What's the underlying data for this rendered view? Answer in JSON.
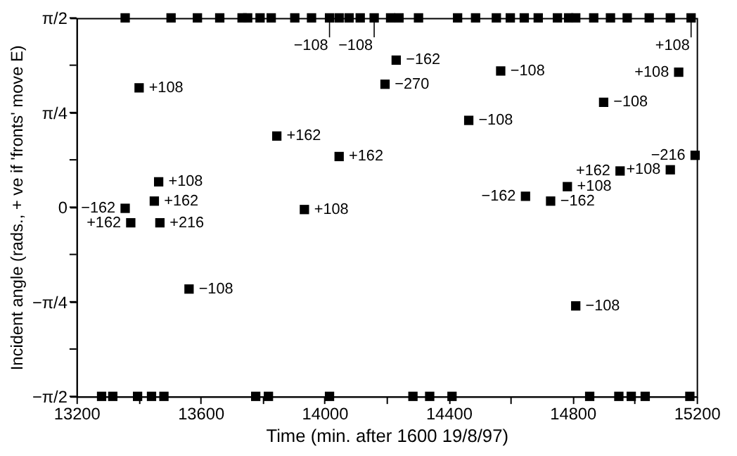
{
  "chart_data": {
    "type": "scatter",
    "xlabel": "Time (min. after 1600 19/8/97)",
    "ylabel": "Incident angle (rads., + ve if 'fronts' move E)",
    "xlim": [
      13200,
      15200
    ],
    "xticks": [
      13200,
      {
        "value": 13400,
        "label": null
      },
      13600,
      {
        "value": 13800,
        "label": null
      },
      14000,
      {
        "value": 14200,
        "label": null
      },
      14400,
      {
        "value": 14600,
        "label": null
      },
      14800,
      {
        "value": 15000,
        "label": null
      },
      15200
    ],
    "ylim": [
      -1.5708,
      1.5708
    ],
    "yticks": [
      {
        "value": -1.5708,
        "label": "−π/2"
      },
      {
        "value": -1.1781,
        "label": null
      },
      {
        "value": -0.7854,
        "label": "−π/4"
      },
      {
        "value": -0.3927,
        "label": null
      },
      0,
      {
        "value": 0.3927,
        "label": null
      },
      {
        "value": 0.7854,
        "label": "π/4"
      },
      {
        "value": 1.1781,
        "label": null
      },
      {
        "value": 1.5708,
        "label": "π/2"
      }
    ],
    "marker": "square",
    "series": [
      {
        "color": "#000000",
        "x": [
          13402,
          13846,
          14047,
          13465,
          13451,
          13357,
          13375,
          13469,
          13935,
          13563,
          14231,
          14195,
          14568,
          14465,
          14900,
          15142,
          15195,
          14953,
          15115,
          14783,
          14648,
          14729,
          14810
        ],
        "values": [
          0.99,
          0.59,
          0.42,
          0.21,
          0.05,
          -0.01,
          -0.13,
          -0.13,
          -0.02,
          -0.68,
          1.22,
          1.02,
          1.13,
          0.72,
          0.87,
          1.12,
          0.43,
          0.3,
          0.31,
          0.17,
          0.09,
          0.05,
          -0.82
        ]
      },
      {
        "color": "#000000",
        "x": [
          13357,
          13505,
          13590,
          13662,
          13734,
          13752,
          13792,
          13828,
          13904,
          13958,
          14016,
          14047,
          14079,
          14115,
          14160,
          14213,
          14240,
          14303,
          14429,
          14487,
          14554,
          14599,
          14644,
          14689,
          14751,
          14787,
          14810,
          14868,
          14922,
          14976,
          15047,
          15115,
          15182
        ],
        "values": [
          1.5708,
          1.5708,
          1.5708,
          1.5708,
          1.5708,
          1.5708,
          1.5708,
          1.5708,
          1.5708,
          1.5708,
          1.5708,
          1.5708,
          1.5708,
          1.5708,
          1.5708,
          1.5708,
          1.5708,
          1.5708,
          1.5708,
          1.5708,
          1.5708,
          1.5708,
          1.5708,
          1.5708,
          1.5708,
          1.5708,
          1.5708,
          1.5708,
          1.5708,
          1.5708,
          1.5708,
          1.5708,
          1.5708
        ]
      },
      {
        "color": "#000000",
        "x": [
          13281,
          13317,
          13397,
          13442,
          13482,
          13778,
          13819,
          14016,
          14285,
          14339,
          14411,
          14855,
          14949,
          14989,
          15034,
          15178
        ],
        "values": [
          -1.5708,
          -1.5708,
          -1.5708,
          -1.5708,
          -1.5708,
          -1.5708,
          -1.5708,
          -1.5708,
          -1.5708,
          -1.5708,
          -1.5708,
          -1.5708,
          -1.5708,
          -1.5708,
          -1.5708,
          -1.5708
        ]
      }
    ],
    "annotations": [
      {
        "text": "+108",
        "x": 13402,
        "y": 0.99
      },
      {
        "text": "+162",
        "x": 13846,
        "y": 0.59
      },
      {
        "text": "+162",
        "x": 14047,
        "y": 0.42
      },
      {
        "text": "+108",
        "x": 13465,
        "y": 0.21
      },
      {
        "text": "+162",
        "x": 13451,
        "y": 0.05
      },
      {
        "text": "−162",
        "x": 13357,
        "y": -0.01
      },
      {
        "text": "+162",
        "x": 13375,
        "y": -0.13
      },
      {
        "text": "+216",
        "x": 13469,
        "y": -0.13
      },
      {
        "text": "+108",
        "x": 13935,
        "y": -0.02
      },
      {
        "text": "−108",
        "x": 13563,
        "y": -0.68
      },
      {
        "text": "−162",
        "x": 14231,
        "y": 1.22
      },
      {
        "text": "−270",
        "x": 14195,
        "y": 1.02
      },
      {
        "text": "−108",
        "x": 14568,
        "y": 1.13
      },
      {
        "text": "−108",
        "x": 14465,
        "y": 0.72
      },
      {
        "text": "−108",
        "x": 14900,
        "y": 0.87
      },
      {
        "text": "+108",
        "x": 15142,
        "y": 1.12
      },
      {
        "text": "−216",
        "x": 15195,
        "y": 0.43
      },
      {
        "text": "+162",
        "x": 14953,
        "y": 0.3
      },
      {
        "text": "+108",
        "x": 15115,
        "y": 0.31
      },
      {
        "text": "+108",
        "x": 14783,
        "y": 0.17
      },
      {
        "text": "−162",
        "x": 14648,
        "y": 0.09
      },
      {
        "text": "−162",
        "x": 14729,
        "y": 0.05
      },
      {
        "text": "−108",
        "x": 14810,
        "y": -0.82
      },
      {
        "text": "−108",
        "x": 14016,
        "y": 1.5708
      },
      {
        "text": "−108",
        "x": 14160,
        "y": 1.5708
      },
      {
        "text": "+108",
        "x": 15182,
        "y": 1.5708
      }
    ]
  }
}
